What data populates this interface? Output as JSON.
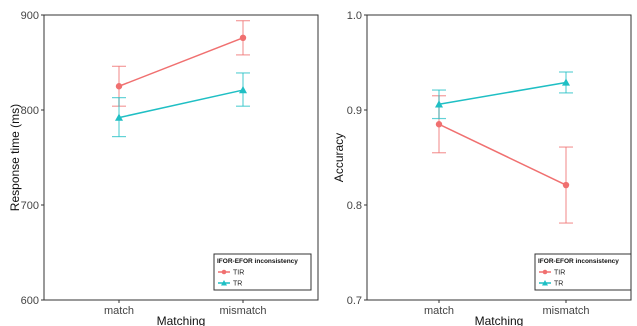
{
  "chart_data": [
    {
      "type": "line",
      "x": [
        "match",
        "mismatch"
      ],
      "xlabel": "Matching",
      "ylabel": "Response time (ms)",
      "ylim": [
        600,
        900
      ],
      "yticks": [
        600,
        700,
        800,
        900
      ],
      "grid": false,
      "legend": {
        "title": "IFOR-EFOR inconsistency",
        "position": "bottom-right"
      },
      "series": [
        {
          "name": "TIR",
          "color": "#f07070",
          "marker": "circle",
          "values": [
            825,
            876
          ],
          "err_low": [
            804,
            858
          ],
          "err_high": [
            846,
            894
          ]
        },
        {
          "name": "TR",
          "color": "#1fbfc4",
          "marker": "triangle",
          "values": [
            792,
            821
          ],
          "err_low": [
            772,
            804
          ],
          "err_high": [
            813,
            839
          ]
        }
      ]
    },
    {
      "type": "line",
      "x": [
        "match",
        "mismatch"
      ],
      "xlabel": "Matching",
      "ylabel": "Accuracy",
      "ylim": [
        0.7,
        1.0
      ],
      "yticks": [
        "0.7",
        "0.8",
        "0.9",
        "1.0"
      ],
      "grid": false,
      "legend": {
        "title": "IFOR-EFOR inconsistency",
        "position": "bottom-right"
      },
      "series": [
        {
          "name": "TIR",
          "color": "#f07070",
          "marker": "circle",
          "values": [
            0.885,
            0.821
          ],
          "err_low": [
            0.855,
            0.781
          ],
          "err_high": [
            0.915,
            0.861
          ]
        },
        {
          "name": "TR",
          "color": "#1fbfc4",
          "marker": "triangle",
          "values": [
            0.906,
            0.929
          ],
          "err_low": [
            0.891,
            0.918
          ],
          "err_high": [
            0.921,
            0.94
          ]
        }
      ]
    }
  ]
}
